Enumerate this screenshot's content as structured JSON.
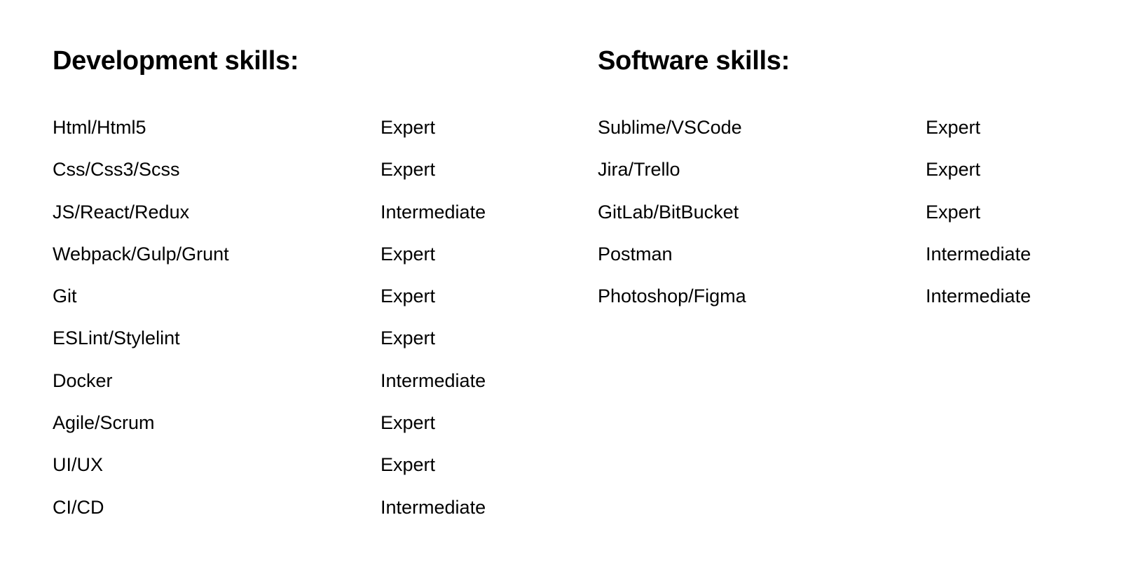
{
  "development": {
    "title": "Development skills:",
    "skills": [
      {
        "name": "Html/Html5",
        "level": "Expert"
      },
      {
        "name": "Css/Css3/Scss",
        "level": "Expert"
      },
      {
        "name": "JS/React/Redux",
        "level": "Intermediate"
      },
      {
        "name": "Webpack/Gulp/Grunt",
        "level": "Expert"
      },
      {
        "name": "Git",
        "level": "Expert"
      },
      {
        "name": "ESLint/Stylelint",
        "level": "Expert"
      },
      {
        "name": "Docker",
        "level": "Intermediate"
      },
      {
        "name": "Agile/Scrum",
        "level": "Expert"
      },
      {
        "name": "UI/UX",
        "level": "Expert"
      },
      {
        "name": "CI/CD",
        "level": "Intermediate"
      }
    ]
  },
  "software": {
    "title": "Software skills:",
    "skills": [
      {
        "name": "Sublime/VSCode",
        "level": "Expert"
      },
      {
        "name": "Jira/Trello",
        "level": "Expert"
      },
      {
        "name": "GitLab/BitBucket",
        "level": "Expert"
      },
      {
        "name": "Postman",
        "level": "Intermediate"
      },
      {
        "name": "Photoshop/Figma",
        "level": "Intermediate"
      }
    ]
  }
}
